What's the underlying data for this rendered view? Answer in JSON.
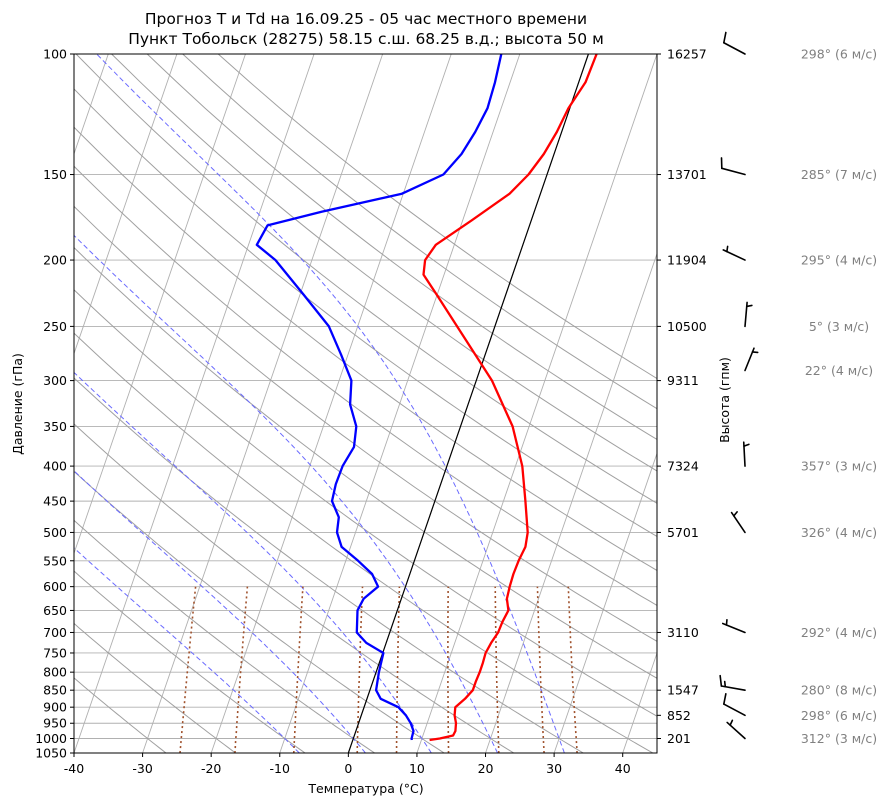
{
  "chart_data": {
    "type": "line",
    "title_line1": "Прогноз T и Td на 16.09.25 - 05 час местного времени",
    "title_line2": "Пункт Тобольск (28275) 58.15 с.ш. 68.25 в.д.; высота 50 м",
    "xlabel": "Температура (°C)",
    "ylabel": "Давление (гПа)",
    "ylabel_right": "Высота (гпм)",
    "x_ticks": [
      -40,
      -30,
      -20,
      -10,
      0,
      10,
      20,
      30,
      40
    ],
    "xlim": [
      -40,
      45
    ],
    "ylim": [
      1050,
      100
    ],
    "y_scale": "log",
    "p_ticks": [
      100,
      150,
      200,
      250,
      300,
      350,
      400,
      450,
      500,
      550,
      600,
      650,
      700,
      750,
      800,
      850,
      900,
      950,
      1000,
      1050
    ],
    "height_labels": [
      {
        "p": 100,
        "label": "16257"
      },
      {
        "p": 150,
        "label": "13701"
      },
      {
        "p": 200,
        "label": "11904"
      },
      {
        "p": 250,
        "label": "10500"
      },
      {
        "p": 300,
        "label": "9311"
      },
      {
        "p": 400,
        "label": "7324"
      },
      {
        "p": 500,
        "label": "5701"
      },
      {
        "p": 700,
        "label": "3110"
      },
      {
        "p": 850,
        "label": "1547"
      },
      {
        "p": 925,
        "label": "852"
      },
      {
        "p": 1000,
        "label": "201"
      }
    ],
    "temperature": {
      "name": "T",
      "color": "#ff0000",
      "points": [
        [
          1005,
          11.2
        ],
        [
          1000,
          12.6
        ],
        [
          990,
          14.4
        ],
        [
          975,
          14.5
        ],
        [
          950,
          14.2
        ],
        [
          925,
          13.6
        ],
        [
          900,
          13.3
        ],
        [
          875,
          14.3
        ],
        [
          850,
          15.0
        ],
        [
          825,
          15.0
        ],
        [
          800,
          15.1
        ],
        [
          775,
          15.1
        ],
        [
          750,
          15.0
        ],
        [
          725,
          15.3
        ],
        [
          700,
          15.8
        ],
        [
          675,
          15.9
        ],
        [
          650,
          16.2
        ],
        [
          625,
          15.4
        ],
        [
          600,
          15.2
        ],
        [
          575,
          15.1
        ],
        [
          550,
          15.2
        ],
        [
          525,
          15.5
        ],
        [
          500,
          15.1
        ],
        [
          450,
          13.2
        ],
        [
          400,
          11.0
        ],
        [
          350,
          7.6
        ],
        [
          300,
          2.3
        ],
        [
          250,
          -5.5
        ],
        [
          225,
          -10.0
        ],
        [
          210,
          -13.0
        ],
        [
          200,
          -13.5
        ],
        [
          190,
          -12.7
        ],
        [
          175,
          -8.7
        ],
        [
          160,
          -4.5
        ],
        [
          150,
          -2.7
        ],
        [
          140,
          -1.5
        ],
        [
          130,
          -0.7
        ],
        [
          120,
          -0.2
        ],
        [
          110,
          1.0
        ],
        [
          100,
          1.2
        ]
      ]
    },
    "dewpoint": {
      "name": "Td",
      "color": "#0000ff",
      "points": [
        [
          1005,
          8.6
        ],
        [
          1000,
          8.5
        ],
        [
          975,
          8.4
        ],
        [
          950,
          7.6
        ],
        [
          925,
          6.5
        ],
        [
          900,
          5.0
        ],
        [
          875,
          2.0
        ],
        [
          850,
          0.9
        ],
        [
          800,
          0.4
        ],
        [
          750,
          0.1
        ],
        [
          725,
          -2.9
        ],
        [
          700,
          -4.8
        ],
        [
          650,
          -5.8
        ],
        [
          625,
          -5.5
        ],
        [
          600,
          -4.0
        ],
        [
          575,
          -5.5
        ],
        [
          550,
          -8.2
        ],
        [
          525,
          -11.3
        ],
        [
          500,
          -12.7
        ],
        [
          475,
          -13.2
        ],
        [
          450,
          -15.0
        ],
        [
          425,
          -15.3
        ],
        [
          400,
          -15.2
        ],
        [
          375,
          -14.5
        ],
        [
          350,
          -15.2
        ],
        [
          325,
          -17.2
        ],
        [
          300,
          -18.2
        ],
        [
          275,
          -21.0
        ],
        [
          250,
          -24.2
        ],
        [
          225,
          -29.4
        ],
        [
          200,
          -35.3
        ],
        [
          190,
          -38.8
        ],
        [
          178,
          -38.2
        ],
        [
          170,
          -31.0
        ],
        [
          160,
          -20.2
        ],
        [
          150,
          -15.1
        ],
        [
          140,
          -13.5
        ],
        [
          130,
          -12.6
        ],
        [
          120,
          -12.0
        ],
        [
          110,
          -12.2
        ],
        [
          100,
          -12.7
        ]
      ]
    },
    "dry_adiabats_theta_c": [
      -30,
      -20,
      -10,
      0,
      10,
      20,
      30,
      40,
      50,
      60,
      70,
      80,
      90,
      100,
      110,
      120,
      130,
      140,
      150
    ],
    "moist_adiabats_t1000_c": [
      -10,
      0,
      10,
      20,
      30
    ],
    "mixing_ratio_g_kg": [
      0.5,
      1,
      2,
      4,
      6,
      10,
      16,
      24,
      32
    ],
    "reference_line": {
      "p": [
        1050,
        100
      ],
      "t": [
        0,
        0
      ]
    },
    "wind_barbs": [
      {
        "p": 100,
        "dir": 298,
        "speed": 6,
        "label": "298° (6 м/с)"
      },
      {
        "p": 150,
        "dir": 285,
        "speed": 7,
        "label": "285° (7 м/с)"
      },
      {
        "p": 200,
        "dir": 295,
        "speed": 4,
        "label": "295° (4 м/с)"
      },
      {
        "p": 250,
        "dir": 5,
        "speed": 3,
        "label": "5° (3 м/с)"
      },
      {
        "p": 290,
        "dir": 22,
        "speed": 4,
        "label": "22° (4 м/с)"
      },
      {
        "p": 400,
        "dir": 357,
        "speed": 3,
        "label": "357° (3 м/с)"
      },
      {
        "p": 500,
        "dir": 326,
        "speed": 4,
        "label": "326° (4 м/с)"
      },
      {
        "p": 700,
        "dir": 292,
        "speed": 4,
        "label": "292° (4 м/с)"
      },
      {
        "p": 850,
        "dir": 280,
        "speed": 8,
        "label": "280° (8 м/с)"
      },
      {
        "p": 925,
        "dir": 298,
        "speed": 6,
        "label": "298° (6 м/с)"
      },
      {
        "p": 1000,
        "dir": 312,
        "speed": 3,
        "label": "312° (3 м/с)"
      }
    ],
    "grid": true,
    "colors": {
      "grid": "#b0b0b0",
      "dry_adiabat": "#a0a0a0",
      "moist_adiabat": "#6a6aff",
      "mixing_ratio": "#a0522d",
      "wind_label": "#808080"
    }
  }
}
